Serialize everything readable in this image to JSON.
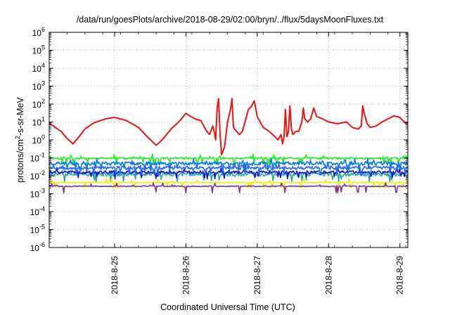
{
  "chart_data": {
    "type": "line",
    "title": "/data/run/goesPlots/archive/2018-08-29/02:00/bryn/../flux/5daysMoonFluxes.txt",
    "xlabel": "Coordinated Universal Time (UTC)",
    "ylabel": {
      "prefix": "protons/cm",
      "sup": "2",
      "suffix": "-s-sr-MeV"
    },
    "xlim": [
      "2018-08-24T02:00",
      "2018-08-29T02:40"
    ],
    "x_ticks": [
      "2018-8-25",
      "2018-8-26",
      "2018-8-27",
      "2018-8-28",
      "2018-8-29"
    ],
    "y_scale": "log",
    "ylim": [
      1e-06,
      1000000.0
    ],
    "y_ticks": [
      {
        "base": "10",
        "exp": "-6"
      },
      {
        "base": "10",
        "exp": "-5"
      },
      {
        "base": "10",
        "exp": "-4"
      },
      {
        "base": "10",
        "exp": "-3"
      },
      {
        "base": "10",
        "exp": "-2"
      },
      {
        "base": "10",
        "exp": "-1"
      },
      {
        "base": "10",
        "exp": "0"
      },
      {
        "base": "10",
        "exp": "1"
      },
      {
        "base": "10",
        "exp": "2"
      },
      {
        "base": "10",
        "exp": "3"
      },
      {
        "base": "10",
        "exp": "4"
      },
      {
        "base": "10",
        "exp": "5"
      },
      {
        "base": "10",
        "exp": "6"
      }
    ],
    "grid": true,
    "series": [
      {
        "color": "#ee1111",
        "points": [
          [
            "2018-08-24T02:00",
            9
          ],
          [
            "2018-08-24T04:00",
            5
          ],
          [
            "2018-08-24T06:00",
            3
          ],
          [
            "2018-08-24T08:00",
            1.2
          ],
          [
            "2018-08-24T10:00",
            0.6
          ],
          [
            "2018-08-24T12:00",
            1.5
          ],
          [
            "2018-08-24T14:00",
            4
          ],
          [
            "2018-08-24T17:00",
            9
          ],
          [
            "2018-08-24T21:00",
            15
          ],
          [
            "2018-08-25T00:00",
            18
          ],
          [
            "2018-08-25T04:00",
            12
          ],
          [
            "2018-08-25T08:00",
            5
          ],
          [
            "2018-08-25T11:00",
            1.5
          ],
          [
            "2018-08-25T14:00",
            0.5
          ],
          [
            "2018-08-25T16:00",
            1
          ],
          [
            "2018-08-25T19:00",
            4
          ],
          [
            "2018-08-25T22:00",
            12
          ],
          [
            "2018-08-26T00:00",
            30
          ],
          [
            "2018-08-26T03:00",
            15
          ],
          [
            "2018-08-26T05:00",
            12
          ],
          [
            "2018-08-26T07:00",
            3
          ],
          [
            "2018-08-26T08:00",
            2
          ],
          [
            "2018-08-26T09:00",
            6
          ],
          [
            "2018-08-26T09:30",
            3
          ],
          [
            "2018-08-26T10:00",
            1
          ],
          [
            "2018-08-26T10:30",
            60
          ],
          [
            "2018-08-26T11:00",
            200
          ],
          [
            "2018-08-26T11:30",
            2
          ],
          [
            "2018-08-26T12:00",
            0.15
          ],
          [
            "2018-08-26T13:00",
            0.4
          ],
          [
            "2018-08-26T14:00",
            10
          ],
          [
            "2018-08-26T15:00",
            50
          ],
          [
            "2018-08-26T15:30",
            200
          ],
          [
            "2018-08-26T16:00",
            5
          ],
          [
            "2018-08-26T17:00",
            3
          ],
          [
            "2018-08-26T18:00",
            2
          ],
          [
            "2018-08-26T19:00",
            3
          ],
          [
            "2018-08-26T20:00",
            12
          ],
          [
            "2018-08-26T21:00",
            50
          ],
          [
            "2018-08-26T22:00",
            70
          ],
          [
            "2018-08-26T23:00",
            150
          ],
          [
            "2018-08-27T00:00",
            20
          ],
          [
            "2018-08-27T02:00",
            5
          ],
          [
            "2018-08-27T04:00",
            3
          ],
          [
            "2018-08-27T06:00",
            1.5
          ],
          [
            "2018-08-27T07:00",
            1
          ],
          [
            "2018-08-27T08:00",
            2
          ],
          [
            "2018-08-27T08:30",
            0.6
          ],
          [
            "2018-08-27T09:00",
            1.5
          ],
          [
            "2018-08-27T09:30",
            50
          ],
          [
            "2018-08-27T10:00",
            1.5
          ],
          [
            "2018-08-27T10:30",
            3
          ],
          [
            "2018-08-27T11:00",
            80
          ],
          [
            "2018-08-27T11:30",
            4
          ],
          [
            "2018-08-27T12:00",
            2
          ],
          [
            "2018-08-27T13:00",
            3
          ],
          [
            "2018-08-27T14:00",
            3
          ],
          [
            "2018-08-27T15:00",
            10
          ],
          [
            "2018-08-27T15:30",
            60
          ],
          [
            "2018-08-27T16:00",
            15
          ],
          [
            "2018-08-27T17:00",
            10
          ],
          [
            "2018-08-27T18:00",
            15
          ],
          [
            "2018-08-27T19:00",
            60
          ],
          [
            "2018-08-27T20:00",
            20
          ],
          [
            "2018-08-27T22:00",
            15
          ],
          [
            "2018-08-28T00:00",
            10
          ],
          [
            "2018-08-28T03:00",
            8
          ],
          [
            "2018-08-28T06:00",
            10
          ],
          [
            "2018-08-28T08:00",
            5
          ],
          [
            "2018-08-28T10:00",
            4
          ],
          [
            "2018-08-28T11:00",
            6
          ],
          [
            "2018-08-28T11:30",
            80
          ],
          [
            "2018-08-28T12:00",
            30
          ],
          [
            "2018-08-28T13:00",
            8
          ],
          [
            "2018-08-28T14:00",
            5
          ],
          [
            "2018-08-28T16:00",
            6
          ],
          [
            "2018-08-28T18:00",
            10
          ],
          [
            "2018-08-28T20:00",
            15
          ],
          [
            "2018-08-28T22:00",
            22
          ],
          [
            "2018-08-29T00:00",
            18
          ],
          [
            "2018-08-29T01:00",
            12
          ],
          [
            "2018-08-29T02:00",
            8
          ],
          [
            "2018-08-29T02:40",
            9
          ]
        ]
      }
    ],
    "noisy_series": [
      {
        "color": "#22ee22",
        "level": 0.095,
        "amp": 0.13,
        "spike": 0.08,
        "dip": 0.5,
        "seed": 11
      },
      {
        "color": "#0077ee",
        "level": 0.05,
        "amp": 0.22,
        "spike": 0.07,
        "dip": 0.45,
        "seed": 23
      },
      {
        "color": "#22aaaa",
        "level": 0.012,
        "amp": 0.22,
        "spike": 0.06,
        "dip": 0.45,
        "seed": 37
      },
      {
        "color": "#1111cc",
        "level": 0.016,
        "amp": 0.18,
        "spike": 0.06,
        "dip": 0.5,
        "seed": 41
      },
      {
        "color": "#2266ff",
        "level": 0.028,
        "amp": 0.2,
        "spike": 0.06,
        "dip": 0.45,
        "seed": 53
      },
      {
        "color": "#eeee00",
        "level": 0.0042,
        "amp": 0.04,
        "spike": 0.05,
        "dip": 0.55,
        "seed": 67
      },
      {
        "color": "#883388",
        "level": 0.0026,
        "amp": 0.06,
        "spike": 0.05,
        "dip": 0.45,
        "seed": 79
      }
    ]
  }
}
